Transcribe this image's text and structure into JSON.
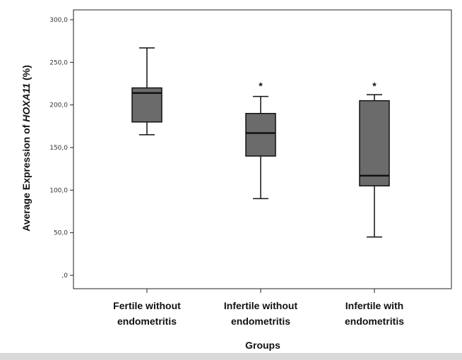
{
  "chart_data": {
    "type": "boxplot",
    "xlabel": "Groups",
    "ylabel_prefix": "Average Expression of ",
    "ylabel_gene": "HOXA11",
    "ylabel_suffix": " (%)",
    "ylim": [
      0,
      305
    ],
    "y_ticks": [
      0,
      50,
      100,
      150,
      200,
      250,
      300
    ],
    "y_tick_labels": [
      ",0",
      "50,0",
      "100,0",
      "150,0",
      "200,0",
      "250,0",
      "300,0"
    ],
    "grid": false,
    "box_color": "#6b6b6b",
    "categories": [
      {
        "line1": "Fertile without",
        "line2": "endometritis"
      },
      {
        "line1": "Infertile without",
        "line2": "endometritis"
      },
      {
        "line1": "Infertile with",
        "line2": "endometritis"
      }
    ],
    "boxes": [
      {
        "min": 165,
        "q1": 180,
        "median": 214,
        "q3": 220,
        "max": 267,
        "outliers": []
      },
      {
        "min": 90,
        "q1": 140,
        "median": 167,
        "q3": 190,
        "max": 210,
        "outliers": [
          225
        ]
      },
      {
        "min": 45,
        "q1": 105,
        "median": 117,
        "q3": 205,
        "max": 212,
        "outliers": [
          225
        ]
      }
    ]
  }
}
